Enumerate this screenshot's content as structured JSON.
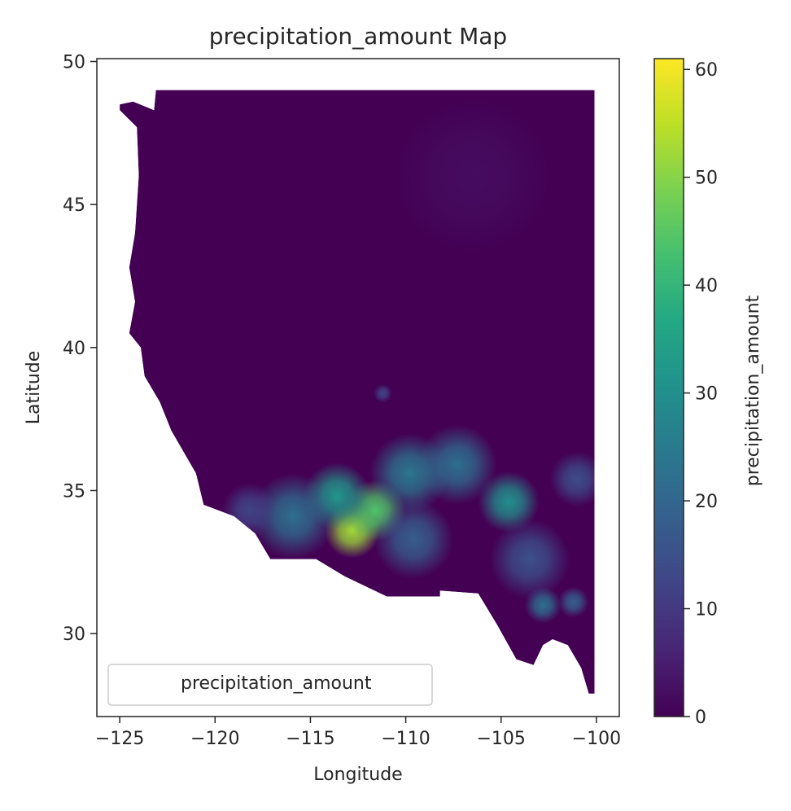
{
  "chart_data": {
    "type": "heatmap",
    "title": "precipitation_amount Map",
    "xlabel": "Longitude",
    "ylabel": "Latitude",
    "xlim": [
      -126.2,
      -98.8
    ],
    "ylim": [
      27.1,
      50.1
    ],
    "xticks": [
      -125,
      -120,
      -115,
      -110,
      -105,
      -100
    ],
    "xtick_labels": [
      "−125",
      "−120",
      "−115",
      "−110",
      "−105",
      "−100"
    ],
    "yticks": [
      30,
      35,
      40,
      45,
      50
    ],
    "ytick_labels": [
      "30",
      "35",
      "40",
      "45",
      "50"
    ],
    "grid": false,
    "colormap": "viridis",
    "colorbar": {
      "label": "precipitation_amount",
      "range": [
        0,
        61
      ],
      "ticks": [
        0,
        10,
        20,
        30,
        40,
        50,
        60
      ],
      "tick_labels": [
        "0",
        "10",
        "20",
        "30",
        "40",
        "50",
        "60"
      ]
    },
    "legend": {
      "entries": [
        "precipitation_amount"
      ],
      "position": "lower-left"
    },
    "background_value": 0,
    "region_outline": [
      [
        -123.1,
        49.0
      ],
      [
        -100.1,
        49.0
      ],
      [
        -100.1,
        27.9
      ],
      [
        -100.4,
        27.9
      ],
      [
        -100.8,
        28.8
      ],
      [
        -101.5,
        29.6
      ],
      [
        -102.3,
        29.8
      ],
      [
        -102.8,
        29.6
      ],
      [
        -103.3,
        28.9
      ],
      [
        -104.2,
        29.1
      ],
      [
        -105.2,
        30.3
      ],
      [
        -106.2,
        31.4
      ],
      [
        -108.2,
        31.5
      ],
      [
        -108.2,
        31.3
      ],
      [
        -111.0,
        31.3
      ],
      [
        -113.2,
        32.0
      ],
      [
        -114.7,
        32.6
      ],
      [
        -117.1,
        32.6
      ],
      [
        -117.9,
        33.5
      ],
      [
        -119.0,
        34.1
      ],
      [
        -120.6,
        34.5
      ],
      [
        -121.0,
        35.6
      ],
      [
        -122.3,
        37.1
      ],
      [
        -122.9,
        38.1
      ],
      [
        -123.7,
        39.0
      ],
      [
        -123.9,
        40.0
      ],
      [
        -124.5,
        40.5
      ],
      [
        -124.2,
        41.6
      ],
      [
        -124.5,
        42.8
      ],
      [
        -124.2,
        44.0
      ],
      [
        -124.0,
        46.0
      ],
      [
        -124.1,
        47.7
      ],
      [
        -124.7,
        48.1
      ],
      [
        -125.0,
        48.3
      ],
      [
        -125.0,
        48.5
      ],
      [
        -124.3,
        48.6
      ],
      [
        -123.2,
        48.3
      ]
    ],
    "precip_hotspots": [
      {
        "lon": -112.8,
        "lat": 33.6,
        "sigma": 0.9,
        "value": 52
      },
      {
        "lon": -111.6,
        "lat": 34.3,
        "sigma": 1.0,
        "value": 44
      },
      {
        "lon": -113.6,
        "lat": 34.8,
        "sigma": 1.1,
        "value": 32
      },
      {
        "lon": -115.9,
        "lat": 34.1,
        "sigma": 1.4,
        "value": 22
      },
      {
        "lon": -109.8,
        "lat": 35.6,
        "sigma": 1.3,
        "value": 24
      },
      {
        "lon": -107.3,
        "lat": 35.9,
        "sigma": 1.3,
        "value": 22
      },
      {
        "lon": -104.6,
        "lat": 34.6,
        "sigma": 1.0,
        "value": 30
      },
      {
        "lon": -102.8,
        "lat": 31.0,
        "sigma": 0.6,
        "value": 22
      },
      {
        "lon": -101.2,
        "lat": 31.1,
        "sigma": 0.5,
        "value": 18
      },
      {
        "lon": -103.5,
        "lat": 32.6,
        "sigma": 1.3,
        "value": 15
      },
      {
        "lon": -109.6,
        "lat": 33.3,
        "sigma": 1.3,
        "value": 18
      },
      {
        "lon": -118.2,
        "lat": 34.3,
        "sigma": 0.9,
        "value": 12
      },
      {
        "lon": -101.0,
        "lat": 35.4,
        "sigma": 0.9,
        "value": 14
      },
      {
        "lon": -106.5,
        "lat": 46.0,
        "sigma": 2.5,
        "value": 2
      },
      {
        "lon": -111.2,
        "lat": 38.4,
        "sigma": 0.3,
        "value": 12
      }
    ]
  }
}
